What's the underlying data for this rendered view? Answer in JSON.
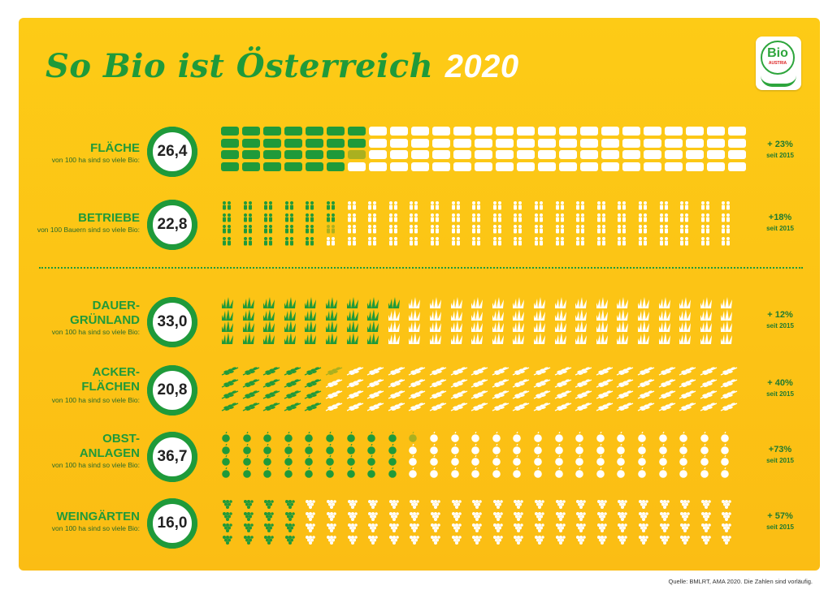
{
  "title": {
    "main": "So Bio ist Österreich",
    "year": "2020"
  },
  "logo": {
    "brand": "Bio",
    "country": "AUSTRIA"
  },
  "colors": {
    "bg": "#fdcb16",
    "green": "#1f9a3a",
    "olive": "#a9b020",
    "white": "#ffffff"
  },
  "rows": [
    {
      "label": "FLÄCHE",
      "sub": "von 100 ha sind so viele Bio:",
      "value": "26,4",
      "change": "+ 23%",
      "since": "seit 2015",
      "icon": "field-tile-icon",
      "bio_share": 26.4
    },
    {
      "label": "BETRIEBE",
      "sub": "von 100 Bauern sind so viele Bio:",
      "value": "22,8",
      "change": "+18%",
      "since": "seit 2015",
      "icon": "farmer-icon",
      "bio_share": 22.8
    },
    {
      "label": "DAUER-\nGRÜNLAND",
      "sub": "von 100 ha sind so viele Bio:",
      "value": "33,0",
      "change": "+ 12%",
      "since": "seit 2015",
      "icon": "grass-icon",
      "bio_share": 33.0
    },
    {
      "label": "ACKER-\nFLÄCHEN",
      "sub": "von 100 ha sind so viele Bio:",
      "value": "20,8",
      "change": "+ 40%",
      "since": "seit 2015",
      "icon": "wheat-icon",
      "bio_share": 20.8
    },
    {
      "label": "OBST-\nANLAGEN",
      "sub": "von 100 ha sind so viele Bio:",
      "value": "36,7",
      "change": "+73%",
      "since": "seit 2015",
      "icon": "apple-icon",
      "bio_share": 36.7
    },
    {
      "label": "WEINGÄRTEN",
      "sub": "von 100 ha sind so viele Bio:",
      "value": "16,0",
      "change": "+ 57%",
      "since": "seit 2015",
      "icon": "grapes-icon",
      "bio_share": 16.0
    }
  ],
  "source": "Quelle: BMLRT, AMA 2020. Die Zahlen sind vorläufig."
}
